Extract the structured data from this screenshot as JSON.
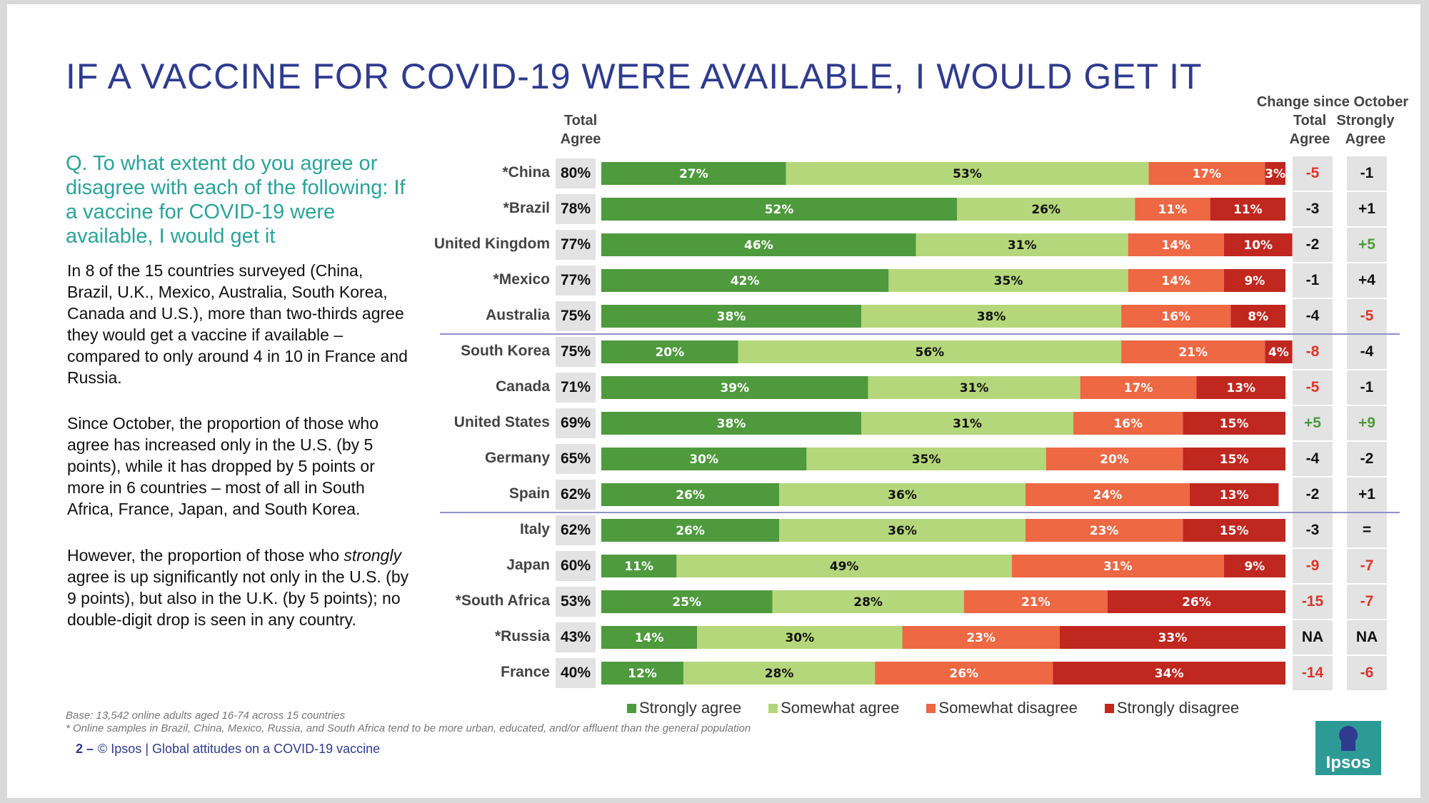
{
  "title": "IF A VACCINE FOR COVID-19 WERE AVAILABLE, I WOULD GET IT",
  "question": "Q. To what extent do you agree or disagree with each of the following: If a vaccine for COVID-19 were available, I would get it",
  "body": {
    "p1": "In 8 of the 15 countries surveyed (China, Brazil, U.K., Mexico, Australia, South Korea, Canada and U.S.), more than two-thirds agree they would get a vaccine if available – compared to only around 4 in 10 in France and Russia.",
    "p2": "Since October, the proportion of those who agree has increased only in the U.S. (by 5 points), while it has dropped by 5 points or more in 6 countries – most of all in South Africa, France, Japan, and South Korea.",
    "p3_before": "However, the proportion of those who ",
    "p3_em": "strongly",
    "p3_after": " agree is up significantly not only in the U.S. (by 9 points), but also in the U.K. (by 5 points); no double-digit drop is seen in any country."
  },
  "headers": {
    "total_agree_line1": "Total",
    "total_agree_line2": "Agree",
    "change_title": "Change since October",
    "change_total_line1": "Total",
    "change_total_line2": "Agree",
    "change_strong_line1": "Strongly",
    "change_strong_line2": "Agree"
  },
  "footer": {
    "base": "Base: 13,542 online adults aged 16-74 across 15 countries",
    "note": "* Online samples in Brazil, China, Mexico, Russia, and South Africa tend to be more urban, educated, and/or affluent than the general population",
    "page_number": "2 –",
    "copyright": "© Ipsos | Global attitudes on a COVID-19 vaccine",
    "logo_text": "Ipsos"
  },
  "colors": {
    "strongly_agree": "#4e9a3d",
    "somewhat_agree": "#b5d77b",
    "somewhat_disagree": "#ed6843",
    "strongly_disagree": "#c0271f",
    "positive_change": "#4e9a3d",
    "negative_change": "#d9362b",
    "neutral_change": "#111111"
  },
  "chart_data": {
    "type": "bar",
    "orientation": "horizontal",
    "stacked": true,
    "title": "IF A VACCINE FOR COVID-19 WERE AVAILABLE, I WOULD GET IT",
    "categories": [
      "*China",
      "*Brazil",
      "United Kingdom",
      "*Mexico",
      "Australia",
      "South Korea",
      "Canada",
      "United States",
      "Germany",
      "Spain",
      "Italy",
      "Japan",
      "*South Africa",
      "*Russia",
      "France"
    ],
    "series": [
      {
        "name": "Strongly agree",
        "values": [
          27,
          52,
          46,
          42,
          38,
          20,
          39,
          38,
          30,
          26,
          26,
          11,
          25,
          14,
          12
        ]
      },
      {
        "name": "Somewhat agree",
        "values": [
          53,
          26,
          31,
          35,
          38,
          56,
          31,
          31,
          35,
          36,
          36,
          49,
          28,
          30,
          28
        ]
      },
      {
        "name": "Somewhat disagree",
        "values": [
          17,
          11,
          14,
          14,
          16,
          21,
          17,
          16,
          20,
          24,
          23,
          31,
          21,
          23,
          26
        ]
      },
      {
        "name": "Strongly disagree",
        "values": [
          3,
          11,
          10,
          9,
          8,
          4,
          13,
          15,
          15,
          13,
          15,
          9,
          26,
          33,
          34
        ]
      }
    ],
    "total_agree": [
      "80%",
      "78%",
      "77%",
      "77%",
      "75%",
      "75%",
      "71%",
      "69%",
      "65%",
      "62%",
      "62%",
      "60%",
      "53%",
      "43%",
      "40%"
    ],
    "change_total_agree": [
      "-5",
      "-3",
      "-2",
      "-1",
      "-4",
      "-8",
      "-5",
      "+5",
      "-4",
      "-2",
      "-3",
      "-9",
      "-15",
      "NA",
      "-14"
    ],
    "change_strongly_agree": [
      "-1",
      "+1",
      "+5",
      "+4",
      "-5",
      "-4",
      "-1",
      "+9",
      "-2",
      "+1",
      "=",
      "-7",
      "-7",
      "NA",
      "-6"
    ],
    "change_total_colors": [
      "neg",
      "neutral",
      "neutral",
      "neutral",
      "neutral",
      "neg",
      "neg",
      "pos",
      "neutral",
      "neutral",
      "neutral",
      "neg",
      "neg",
      "neutral",
      "neg"
    ],
    "change_strong_colors": [
      "neutral",
      "neutral",
      "pos",
      "neutral",
      "neg",
      "neutral",
      "neutral",
      "pos",
      "neutral",
      "neutral",
      "neutral",
      "neg",
      "neg",
      "neutral",
      "neg"
    ],
    "group_dividers_after": [
      4,
      9
    ],
    "legend": [
      "Strongly agree",
      "Somewhat agree",
      "Somewhat disagree",
      "Strongly disagree"
    ],
    "legend_position": "bottom",
    "xlim": [
      0,
      100
    ]
  }
}
